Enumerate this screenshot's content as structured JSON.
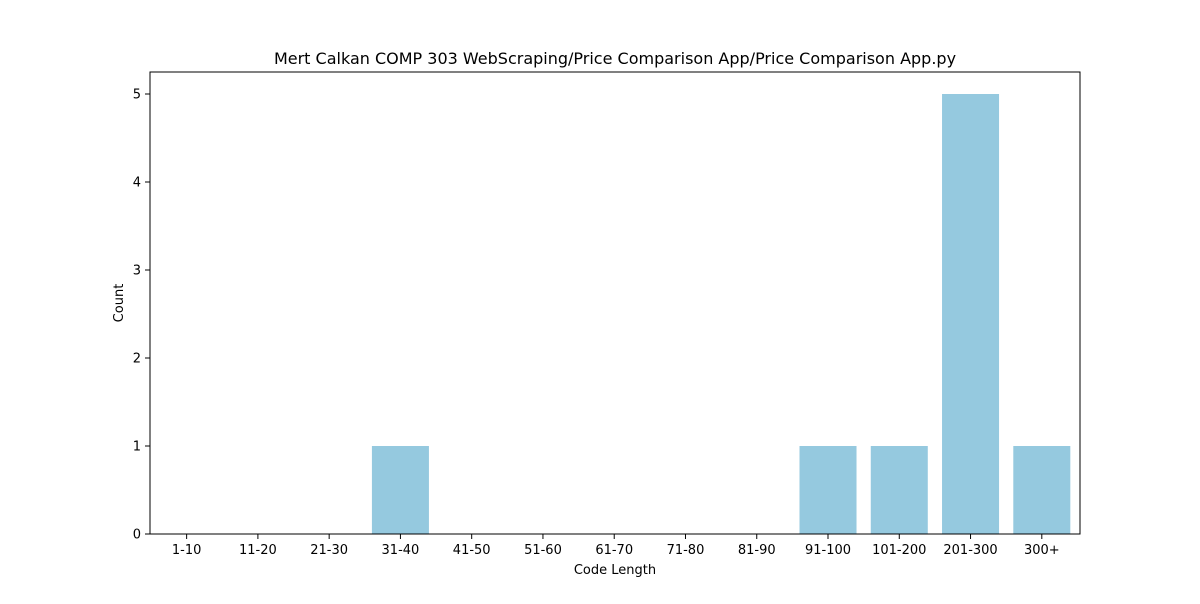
{
  "chart_data": {
    "type": "bar",
    "title": "Mert Calkan COMP 303 WebScraping/Price Comparison App/Price Comparison App.py",
    "xlabel": "Code Length",
    "ylabel": "Count",
    "categories": [
      "1-10",
      "11-20",
      "21-30",
      "31-40",
      "41-50",
      "51-60",
      "61-70",
      "71-80",
      "81-90",
      "91-100",
      "101-200",
      "201-300",
      "300+"
    ],
    "values": [
      0,
      0,
      0,
      1,
      0,
      0,
      0,
      0,
      0,
      1,
      1,
      5,
      1
    ],
    "ylim": [
      0,
      5.25
    ],
    "yticks": [
      "0",
      "1",
      "2",
      "3",
      "4",
      "5"
    ],
    "bar_color": "#95c9df",
    "grid": false,
    "legend": "none"
  }
}
